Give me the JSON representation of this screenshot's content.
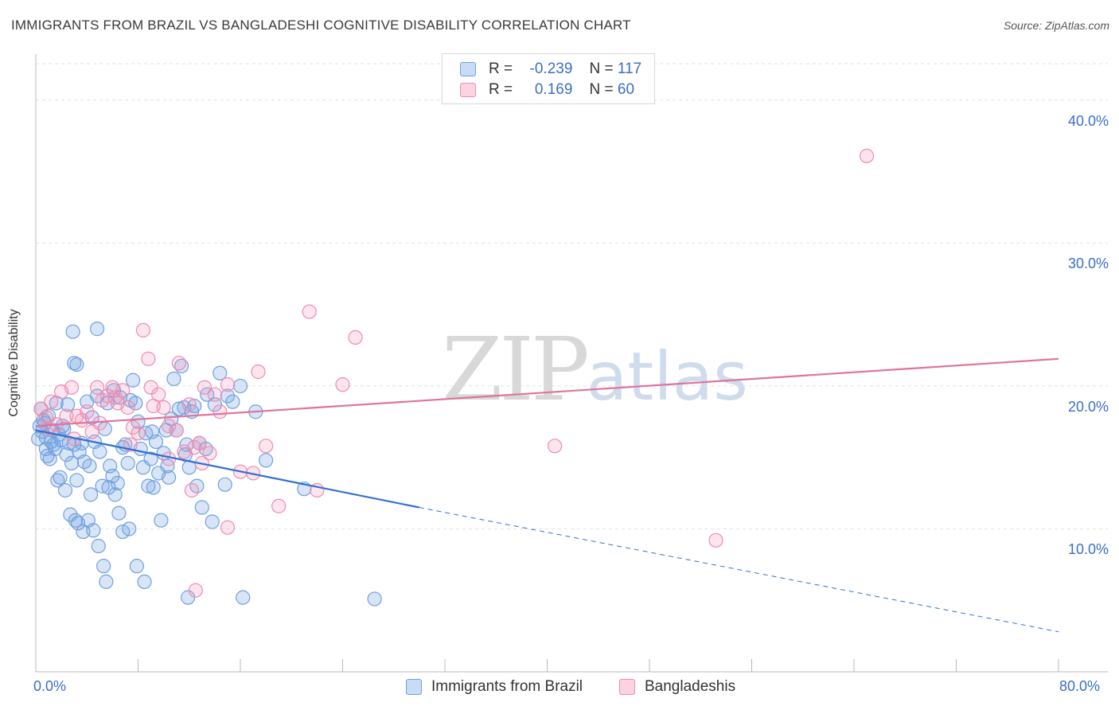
{
  "title": "IMMIGRANTS FROM BRAZIL VS BANGLADESHI COGNITIVE DISABILITY CORRELATION CHART",
  "source": "Source: ZipAtlas.com",
  "watermark": {
    "zip": "ZIP",
    "atlas": "atlas"
  },
  "legend": {
    "series1": {
      "r_label": "R =",
      "r_value": "-0.239",
      "n_label": "N =",
      "n_value": "117",
      "color": "#6fa0e0"
    },
    "series2": {
      "r_label": "R =",
      "r_value": "0.169",
      "n_label": "N =",
      "n_value": "60",
      "color": "#f08ab0"
    }
  },
  "bottom_legend": {
    "series1": "Immigrants from Brazil",
    "series2": "Bangladeshis"
  },
  "chart_data": {
    "type": "scatter",
    "title": "IMMIGRANTS FROM BRAZIL VS BANGLADESHI COGNITIVE DISABILITY CORRELATION CHART",
    "xlabel": "",
    "ylabel": "Cognitive Disability",
    "xlim": [
      0,
      80
    ],
    "ylim": [
      0,
      43
    ],
    "x_ticks": [
      "0.0%",
      "80.0%"
    ],
    "y_ticks": [
      {
        "value": 10,
        "label": "10.0%"
      },
      {
        "value": 20,
        "label": "20.0%"
      },
      {
        "value": 30,
        "label": "30.0%"
      },
      {
        "value": 40,
        "label": "40.0%"
      }
    ],
    "series": [
      {
        "name": "Immigrants from Brazil",
        "color": "#6fa0e0",
        "trend": {
          "x0": 0,
          "y0": 16.9,
          "x1": 30,
          "y1": 11.5,
          "dash_to_x": 80,
          "dash_y": 2.8
        },
        "points": [
          [
            0.3,
            17.2
          ],
          [
            0.5,
            16.8
          ],
          [
            0.6,
            17.6
          ],
          [
            0.8,
            16.4
          ],
          [
            1.0,
            17.9
          ],
          [
            1.2,
            16.1
          ],
          [
            0.4,
            18.4
          ],
          [
            0.7,
            17.4
          ],
          [
            1.3,
            16.9
          ],
          [
            1.5,
            15.6
          ],
          [
            1.6,
            18.8
          ],
          [
            1.8,
            16.6
          ],
          [
            2.0,
            16.2
          ],
          [
            2.2,
            17.0
          ],
          [
            2.4,
            15.2
          ],
          [
            2.6,
            16.0
          ],
          [
            2.8,
            14.6
          ],
          [
            3.0,
            15.9
          ],
          [
            3.2,
            13.4
          ],
          [
            3.4,
            15.4
          ],
          [
            3.6,
            16.0
          ],
          [
            3.8,
            14.7
          ],
          [
            4.0,
            18.9
          ],
          [
            4.2,
            14.4
          ],
          [
            4.4,
            17.8
          ],
          [
            4.6,
            16.1
          ],
          [
            4.8,
            19.3
          ],
          [
            5.0,
            15.4
          ],
          [
            5.2,
            13.0
          ],
          [
            5.4,
            17.0
          ],
          [
            5.6,
            18.8
          ],
          [
            5.8,
            14.4
          ],
          [
            6.0,
            13.7
          ],
          [
            6.2,
            12.4
          ],
          [
            6.4,
            13.2
          ],
          [
            6.6,
            19.2
          ],
          [
            6.8,
            15.7
          ],
          [
            7.0,
            15.9
          ],
          [
            7.2,
            14.6
          ],
          [
            7.4,
            19.0
          ],
          [
            7.6,
            20.4
          ],
          [
            7.8,
            18.8
          ],
          [
            8.0,
            17.5
          ],
          [
            8.2,
            15.6
          ],
          [
            8.4,
            14.3
          ],
          [
            8.6,
            16.7
          ],
          [
            8.8,
            13.0
          ],
          [
            9.0,
            14.9
          ],
          [
            9.2,
            12.9
          ],
          [
            9.4,
            16.1
          ],
          [
            9.6,
            13.9
          ],
          [
            9.8,
            10.6
          ],
          [
            10.0,
            15.3
          ],
          [
            10.2,
            16.9
          ],
          [
            10.4,
            13.6
          ],
          [
            10.6,
            17.7
          ],
          [
            10.8,
            20.5
          ],
          [
            11.0,
            16.9
          ],
          [
            11.2,
            18.4
          ],
          [
            11.4,
            21.4
          ],
          [
            11.6,
            18.5
          ],
          [
            11.8,
            15.9
          ],
          [
            12.0,
            14.3
          ],
          [
            12.2,
            18.2
          ],
          [
            12.4,
            18.6
          ],
          [
            12.6,
            13.0
          ],
          [
            12.8,
            16.0
          ],
          [
            13.0,
            11.5
          ],
          [
            13.4,
            19.4
          ],
          [
            13.8,
            10.5
          ],
          [
            14.0,
            18.7
          ],
          [
            14.4,
            20.9
          ],
          [
            15.0,
            19.3
          ],
          [
            15.4,
            18.9
          ],
          [
            16.0,
            20.0
          ],
          [
            16.2,
            5.2
          ],
          [
            18.0,
            14.8
          ],
          [
            21.0,
            12.8
          ],
          [
            26.5,
            5.1
          ],
          [
            11.9,
            5.2
          ],
          [
            0.8,
            15.6
          ],
          [
            1.1,
            14.9
          ],
          [
            1.9,
            13.6
          ],
          [
            2.3,
            12.7
          ],
          [
            2.7,
            11.0
          ],
          [
            3.1,
            10.6
          ],
          [
            3.3,
            10.4
          ],
          [
            3.7,
            9.8
          ],
          [
            4.1,
            10.6
          ],
          [
            4.5,
            9.9
          ],
          [
            4.9,
            8.8
          ],
          [
            5.3,
            7.4
          ],
          [
            5.5,
            6.3
          ],
          [
            6.8,
            9.8
          ],
          [
            7.3,
            10.0
          ],
          [
            7.9,
            7.4
          ],
          [
            8.5,
            6.3
          ],
          [
            2.9,
            23.8
          ],
          [
            4.8,
            24.0
          ],
          [
            3.0,
            21.6
          ],
          [
            3.2,
            21.5
          ],
          [
            2.5,
            18.7
          ],
          [
            1.4,
            15.9
          ],
          [
            2.1,
            17.2
          ],
          [
            0.2,
            16.3
          ],
          [
            0.9,
            15.1
          ],
          [
            1.7,
            13.4
          ],
          [
            6.5,
            11.1
          ],
          [
            5.7,
            12.9
          ],
          [
            4.3,
            12.4
          ],
          [
            9.1,
            16.8
          ],
          [
            10.3,
            14.4
          ],
          [
            11.7,
            15.2
          ],
          [
            13.3,
            15.6
          ],
          [
            14.8,
            13.1
          ],
          [
            17.2,
            18.2
          ],
          [
            6.1,
            19.7
          ]
        ]
      },
      {
        "name": "Bangladeshis",
        "color": "#f08ab0",
        "trend": {
          "x0": 0,
          "y0": 17.2,
          "x1": 80,
          "y1": 21.9
        },
        "points": [
          [
            0.4,
            18.4
          ],
          [
            0.8,
            17.8
          ],
          [
            1.2,
            18.9
          ],
          [
            1.6,
            17.3
          ],
          [
            2.0,
            19.6
          ],
          [
            2.4,
            17.9
          ],
          [
            2.8,
            19.9
          ],
          [
            3.2,
            17.9
          ],
          [
            3.6,
            17.6
          ],
          [
            4.0,
            18.2
          ],
          [
            4.4,
            16.8
          ],
          [
            4.8,
            19.9
          ],
          [
            5.2,
            19.0
          ],
          [
            5.6,
            19.3
          ],
          [
            6.0,
            19.9
          ],
          [
            6.4,
            18.8
          ],
          [
            6.8,
            19.7
          ],
          [
            7.2,
            18.5
          ],
          [
            7.6,
            17.1
          ],
          [
            8.0,
            16.7
          ],
          [
            8.4,
            23.9
          ],
          [
            8.8,
            21.9
          ],
          [
            9.2,
            18.6
          ],
          [
            9.6,
            19.4
          ],
          [
            10.0,
            18.5
          ],
          [
            10.4,
            17.2
          ],
          [
            11.2,
            21.6
          ],
          [
            11.6,
            15.4
          ],
          [
            12.0,
            18.7
          ],
          [
            12.4,
            15.7
          ],
          [
            12.8,
            16.0
          ],
          [
            13.2,
            19.9
          ],
          [
            13.6,
            15.3
          ],
          [
            14.0,
            19.4
          ],
          [
            14.4,
            18.2
          ],
          [
            15.0,
            20.1
          ],
          [
            16.0,
            14.0
          ],
          [
            17.0,
            13.9
          ],
          [
            17.4,
            21.0
          ],
          [
            18.0,
            15.8
          ],
          [
            19.0,
            11.6
          ],
          [
            21.4,
            25.2
          ],
          [
            22.0,
            12.7
          ],
          [
            24.0,
            20.1
          ],
          [
            25.0,
            23.4
          ],
          [
            40.6,
            15.8
          ],
          [
            53.2,
            9.2
          ],
          [
            65.0,
            36.1
          ],
          [
            12.2,
            12.7
          ],
          [
            12.5,
            5.7
          ],
          [
            15.0,
            10.1
          ],
          [
            10.4,
            14.9
          ],
          [
            7.4,
            15.9
          ],
          [
            5.0,
            17.4
          ],
          [
            3.0,
            16.3
          ],
          [
            1.0,
            17.0
          ],
          [
            6.2,
            19.2
          ],
          [
            9.0,
            19.9
          ],
          [
            11.0,
            16.9
          ],
          [
            13.0,
            14.6
          ]
        ]
      }
    ]
  }
}
